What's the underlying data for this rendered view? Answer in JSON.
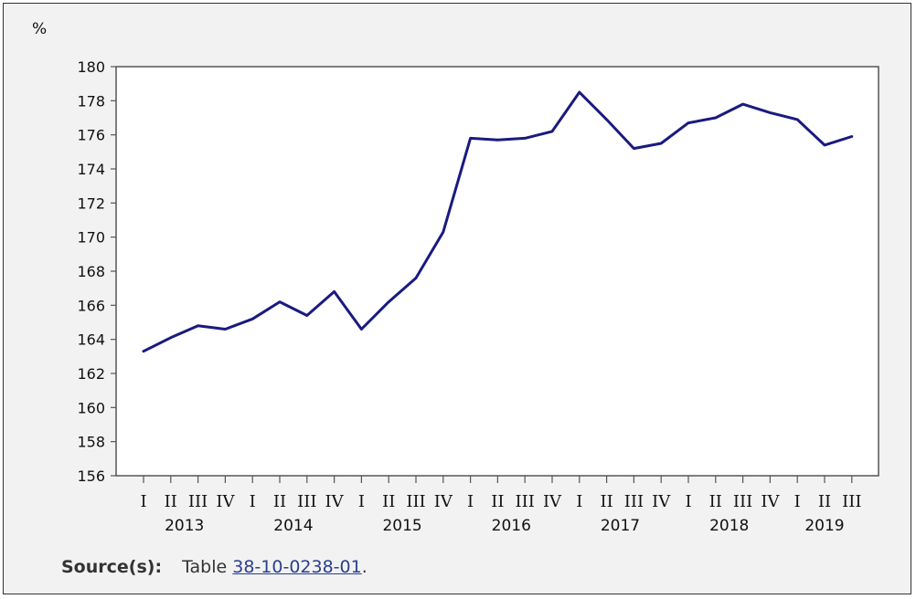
{
  "chart_data": {
    "type": "line",
    "ylabel": "%",
    "ylim": [
      156,
      180
    ],
    "yticks": [
      156,
      158,
      160,
      162,
      164,
      166,
      168,
      170,
      172,
      174,
      176,
      178,
      180
    ],
    "grid": false,
    "x": [
      "I",
      "II",
      "III",
      "IV",
      "I",
      "II",
      "III",
      "IV",
      "I",
      "II",
      "III",
      "IV",
      "I",
      "II",
      "III",
      "IV",
      "I",
      "II",
      "III",
      "IV",
      "I",
      "II",
      "III",
      "IV",
      "I",
      "II",
      "III"
    ],
    "years": [
      {
        "label": "2013",
        "start": 0
      },
      {
        "label": "2014",
        "start": 4
      },
      {
        "label": "2015",
        "start": 8
      },
      {
        "label": "2016",
        "start": 12
      },
      {
        "label": "2017",
        "start": 16
      },
      {
        "label": "2018",
        "start": 20
      },
      {
        "label": "2019",
        "start": 24
      }
    ],
    "series": [
      {
        "color": "#1a1a80",
        "values": [
          163.3,
          164.1,
          164.8,
          164.6,
          165.2,
          166.2,
          165.4,
          166.8,
          164.6,
          166.2,
          167.6,
          170.3,
          175.8,
          175.7,
          175.8,
          176.2,
          178.5,
          176.9,
          175.2,
          175.5,
          176.7,
          177.0,
          177.8,
          177.3,
          176.9,
          175.4,
          175.9
        ]
      }
    ]
  },
  "source": {
    "label": "Source(s):",
    "prefix": "Table ",
    "link_text": "38-10-0238-01",
    "suffix": "."
  }
}
